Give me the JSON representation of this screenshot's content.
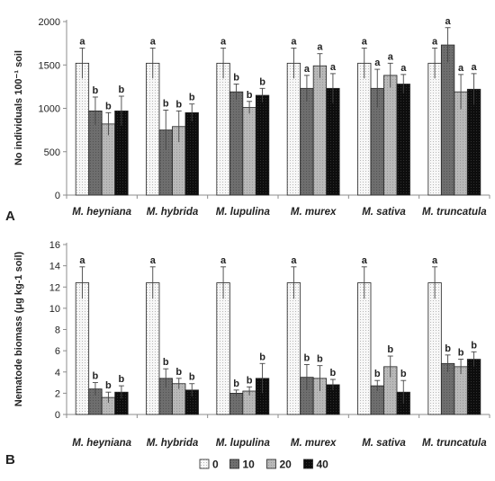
{
  "colors": {
    "0": "#f7f7f7",
    "10": "#6e6e6e",
    "20": "#b8b8b8",
    "40": "#0d0d0d",
    "axis": "#8c8c8c",
    "error_bar": "#444444"
  },
  "legend": {
    "entries": [
      "0",
      "10",
      "20",
      "40"
    ],
    "placement": "bottom-center"
  },
  "chart_data": [
    {
      "type": "bar",
      "panel_label": "A",
      "ylabel": "No individuals 100⁻¹ soil",
      "ylim": [
        0,
        2000
      ],
      "yticks": [
        0,
        500,
        1000,
        1500,
        2000
      ],
      "grid": false,
      "categories": [
        "M. heyniana",
        "M. hybrida",
        "M. lupulina",
        "M. murex",
        "M. sativa",
        "M. truncatula"
      ],
      "series": [
        {
          "name": "0",
          "values": [
            1520,
            1520,
            1520,
            1520,
            1520,
            1520
          ],
          "errors": [
            175,
            175,
            175,
            175,
            175,
            175
          ],
          "labels": [
            "a",
            "a",
            "a",
            "a",
            "a",
            "a"
          ]
        },
        {
          "name": "10",
          "values": [
            970,
            750,
            1190,
            1230,
            1230,
            1730
          ],
          "errors": [
            160,
            230,
            90,
            150,
            220,
            200
          ],
          "labels": [
            "b",
            "b",
            "b",
            "a",
            "a",
            "a"
          ]
        },
        {
          "name": "20",
          "values": [
            820,
            790,
            1010,
            1490,
            1380,
            1190
          ],
          "errors": [
            130,
            180,
            70,
            140,
            140,
            200
          ],
          "labels": [
            "b",
            "b",
            "b",
            "a",
            "a",
            "a"
          ]
        },
        {
          "name": "40",
          "values": [
            970,
            950,
            1150,
            1230,
            1280,
            1220
          ],
          "errors": [
            170,
            100,
            80,
            170,
            110,
            180
          ],
          "labels": [
            "b",
            "b",
            "b",
            "a",
            "a",
            "a"
          ]
        }
      ]
    },
    {
      "type": "bar",
      "panel_label": "B",
      "ylabel": "Nematode biomass (μg kg-1 soil)",
      "ylim": [
        0,
        16
      ],
      "yticks": [
        0,
        2,
        4,
        6,
        8,
        10,
        12,
        14,
        16
      ],
      "grid": false,
      "categories": [
        "M. heyniana",
        "M. hybrida",
        "M. lupulina",
        "M. murex",
        "M. sativa",
        "M. truncatula"
      ],
      "series": [
        {
          "name": "0",
          "values": [
            12.4,
            12.4,
            12.4,
            12.4,
            12.4,
            12.4
          ],
          "errors": [
            1.5,
            1.5,
            1.5,
            1.5,
            1.5,
            1.5
          ],
          "labels": [
            "a",
            "a",
            "a",
            "a",
            "a",
            "a"
          ]
        },
        {
          "name": "10",
          "values": [
            2.4,
            3.4,
            2.0,
            3.5,
            2.7,
            4.8
          ],
          "errors": [
            0.6,
            0.9,
            0.3,
            1.2,
            0.5,
            0.8
          ],
          "labels": [
            "b",
            "b",
            "b",
            "b",
            "b",
            "b"
          ]
        },
        {
          "name": "20",
          "values": [
            1.6,
            2.9,
            2.2,
            3.4,
            4.5,
            4.5
          ],
          "errors": [
            0.5,
            0.5,
            0.4,
            1.2,
            1.0,
            0.7
          ],
          "labels": [
            "b",
            "b",
            "b",
            "b",
            "b",
            "b"
          ]
        },
        {
          "name": "40",
          "values": [
            2.1,
            2.3,
            3.4,
            2.8,
            2.1,
            5.2
          ],
          "errors": [
            0.6,
            0.6,
            1.4,
            0.5,
            1.1,
            0.7
          ],
          "labels": [
            "b",
            "b",
            "b",
            "b",
            "b",
            "b"
          ]
        }
      ]
    }
  ]
}
